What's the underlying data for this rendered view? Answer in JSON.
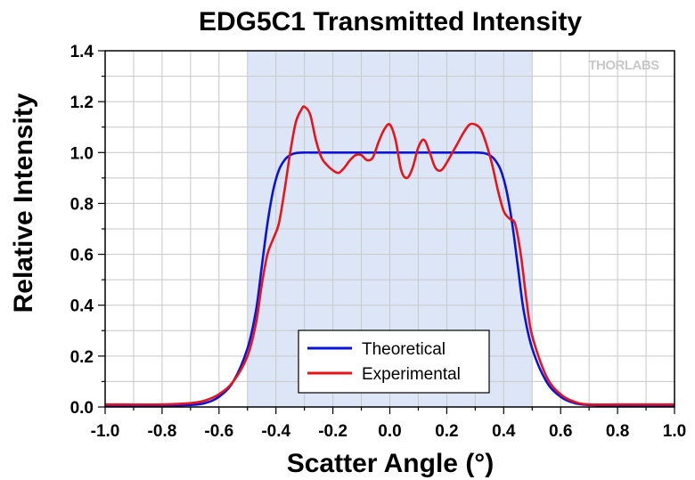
{
  "chart_data": {
    "type": "line",
    "title": "EDG5C1 Transmitted Intensity",
    "xlabel": "Scatter Angle (°)",
    "ylabel": "Relative Intensity",
    "xlim": [
      -1.0,
      1.0
    ],
    "ylim": [
      0.0,
      1.4
    ],
    "xticks": [
      "-1.0",
      "-0.8",
      "-0.6",
      "-0.4",
      "-0.2",
      "0.0",
      "0.2",
      "0.4",
      "0.6",
      "0.8",
      "1.0"
    ],
    "yticks": [
      "0.0",
      "0.2",
      "0.4",
      "0.6",
      "0.8",
      "1.0",
      "1.2",
      "1.4"
    ],
    "grid": true,
    "legend_position": "bottom-center",
    "shaded_region": {
      "x": [
        -0.5,
        0.5
      ],
      "color": "#dce6f7"
    },
    "logo": "THORLABS",
    "series": [
      {
        "name": "Theoretical",
        "color": "#0a14d8",
        "x": [
          -1.0,
          -0.8,
          -0.7,
          -0.65,
          -0.6,
          -0.55,
          -0.5,
          -0.47,
          -0.45,
          -0.43,
          -0.41,
          -0.39,
          -0.37,
          -0.35,
          -0.33,
          -0.3,
          -0.28,
          -0.2,
          0.0,
          0.2,
          0.28,
          0.3,
          0.33,
          0.35,
          0.37,
          0.39,
          0.41,
          0.43,
          0.45,
          0.47,
          0.5,
          0.55,
          0.6,
          0.65,
          0.7,
          0.8,
          1.0
        ],
        "y": [
          0.005,
          0.005,
          0.008,
          0.015,
          0.04,
          0.1,
          0.23,
          0.38,
          0.55,
          0.72,
          0.85,
          0.93,
          0.97,
          0.99,
          0.998,
          1.0,
          1.0,
          1.0,
          1.0,
          1.0,
          1.0,
          1.0,
          0.998,
          0.99,
          0.97,
          0.93,
          0.85,
          0.72,
          0.55,
          0.38,
          0.23,
          0.1,
          0.04,
          0.015,
          0.008,
          0.005,
          0.005
        ]
      },
      {
        "name": "Experimental",
        "color": "#e8141c",
        "x": [
          -1.0,
          -0.8,
          -0.7,
          -0.65,
          -0.6,
          -0.55,
          -0.5,
          -0.47,
          -0.45,
          -0.43,
          -0.41,
          -0.39,
          -0.37,
          -0.35,
          -0.33,
          -0.31,
          -0.3,
          -0.28,
          -0.26,
          -0.24,
          -0.22,
          -0.2,
          -0.18,
          -0.16,
          -0.14,
          -0.12,
          -0.1,
          -0.08,
          -0.06,
          -0.04,
          -0.02,
          0.0,
          0.02,
          0.04,
          0.06,
          0.08,
          0.1,
          0.12,
          0.14,
          0.16,
          0.18,
          0.2,
          0.22,
          0.24,
          0.26,
          0.28,
          0.3,
          0.32,
          0.34,
          0.36,
          0.38,
          0.4,
          0.42,
          0.44,
          0.46,
          0.48,
          0.5,
          0.55,
          0.6,
          0.65,
          0.7,
          0.8,
          1.0
        ],
        "y": [
          0.01,
          0.01,
          0.015,
          0.025,
          0.05,
          0.1,
          0.2,
          0.33,
          0.48,
          0.6,
          0.66,
          0.72,
          0.85,
          1.0,
          1.12,
          1.17,
          1.18,
          1.15,
          1.05,
          0.98,
          0.95,
          0.93,
          0.92,
          0.94,
          0.97,
          0.99,
          0.99,
          0.97,
          0.98,
          1.04,
          1.09,
          1.11,
          1.05,
          0.93,
          0.9,
          0.94,
          1.02,
          1.05,
          1.0,
          0.94,
          0.93,
          0.96,
          1.0,
          1.04,
          1.08,
          1.11,
          1.11,
          1.09,
          1.03,
          0.95,
          0.85,
          0.77,
          0.74,
          0.72,
          0.6,
          0.42,
          0.28,
          0.12,
          0.05,
          0.02,
          0.01,
          0.01,
          0.01
        ]
      }
    ]
  }
}
